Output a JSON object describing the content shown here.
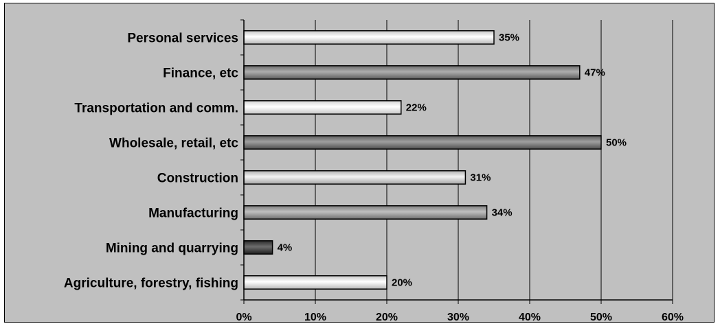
{
  "chart_data": {
    "type": "bar",
    "orientation": "horizontal",
    "categories": [
      "Personal services",
      "Finance, etc",
      "Transportation and comm.",
      "Wholesale, retail, etc",
      "Construction",
      "Manufacturing",
      "Mining and quarrying",
      "Agriculture, forestry, fishing"
    ],
    "values": [
      35,
      47,
      22,
      50,
      31,
      34,
      4,
      20
    ],
    "value_labels": [
      "35%",
      "47%",
      "22%",
      "50%",
      "31%",
      "34%",
      "4%",
      "20%"
    ],
    "xlim": [
      0,
      60
    ],
    "x_ticks": [
      0,
      10,
      20,
      30,
      40,
      50,
      60
    ],
    "x_tick_labels": [
      "0%",
      "10%",
      "20%",
      "30%",
      "40%",
      "50%",
      "60%"
    ],
    "grid": "vertical",
    "legend": "none",
    "colors": {
      "background": "#c0c0c0",
      "plot_background": "#c0c0c0",
      "grid": "#000000",
      "bar_fills": [
        "#e4e4e4",
        "#8a8a8a",
        "#f2f2f2",
        "#7c7c7c",
        "#d0d0d0",
        "#9c9c9c",
        "#4a4a4a",
        "#e4e4e4"
      ]
    }
  }
}
